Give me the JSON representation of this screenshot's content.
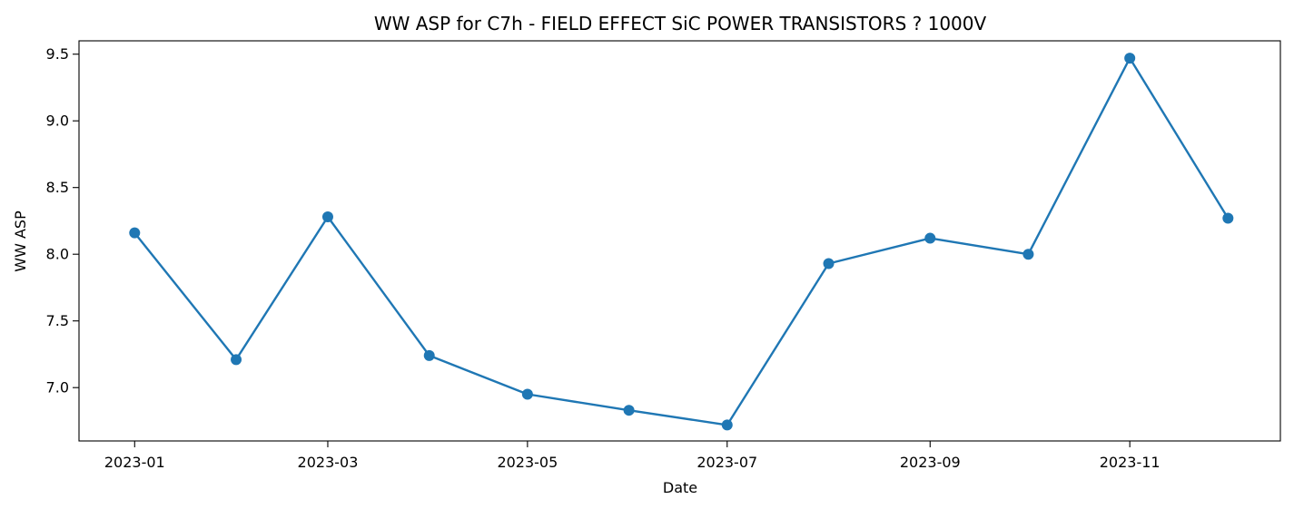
{
  "chart_data": {
    "type": "line",
    "title": "WW ASP for C7h - FIELD EFFECT SiC POWER TRANSISTORS ? 1000V",
    "xlabel": "Date",
    "ylabel": "WW ASP",
    "x": [
      "2023-01-01",
      "2023-02-01",
      "2023-03-01",
      "2023-04-01",
      "2023-05-01",
      "2023-06-01",
      "2023-07-01",
      "2023-08-01",
      "2023-09-01",
      "2023-10-01",
      "2023-11-01",
      "2023-12-01"
    ],
    "series": [
      {
        "values": [
          8.16,
          7.21,
          8.28,
          7.24,
          6.95,
          6.83,
          6.72,
          7.93,
          8.12,
          8.0,
          9.47,
          8.27
        ],
        "color": "#1f77b4"
      }
    ],
    "x_ticks": [
      "2023-01",
      "2023-03",
      "2023-05",
      "2023-07",
      "2023-09",
      "2023-11"
    ],
    "y_ticks": [
      "7.0",
      "7.5",
      "8.0",
      "8.5",
      "9.0",
      "9.5"
    ],
    "xlim": [
      "2022-12-15",
      "2023-12-17"
    ],
    "ylim": [
      6.6,
      9.6
    ],
    "grid": false,
    "markers": "circle"
  }
}
